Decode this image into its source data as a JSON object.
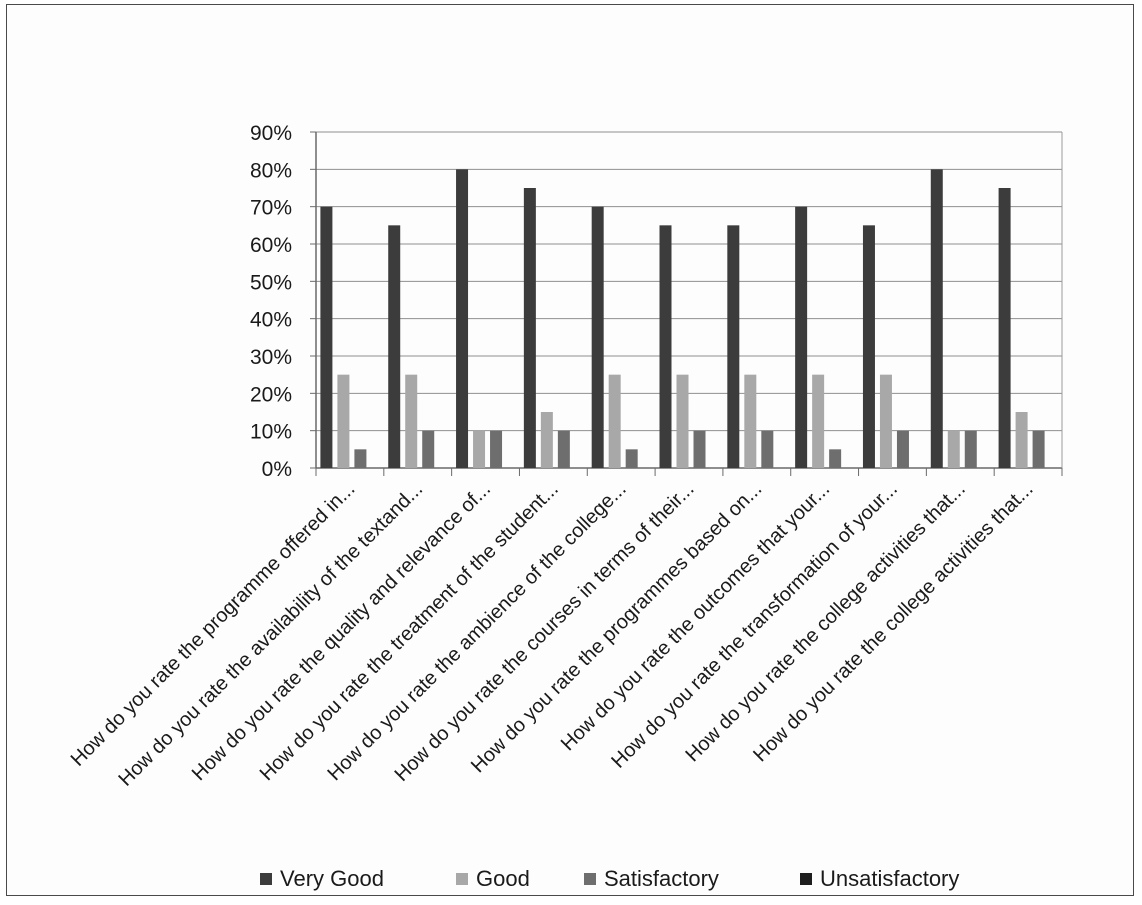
{
  "chart_data": {
    "type": "bar",
    "title": "",
    "xlabel": "",
    "ylabel": "",
    "ylim": [
      0,
      90
    ],
    "y_ticks": [
      "0%",
      "10%",
      "20%",
      "30%",
      "40%",
      "50%",
      "60%",
      "70%",
      "80%",
      "90%"
    ],
    "grid": true,
    "legend_position": "bottom",
    "categories": [
      "How do you rate the programme offered in...",
      "How do you rate the availability of the textand...",
      "How do you rate the quality and relevance of...",
      "How do you rate the treatment of the student...",
      "How do you rate the ambience of the college...",
      "How do you rate the courses in terms of their...",
      "How do you rate the programmes based on...",
      "How do you rate the outcomes that your...",
      "How do you rate the transformation of your...",
      "How do you rate the college activities that...",
      "How do you rate the college activities that..."
    ],
    "series": [
      {
        "name": "Very Good",
        "color": "#3c3c3c",
        "values": [
          70,
          65,
          80,
          75,
          70,
          65,
          65,
          70,
          65,
          80,
          75
        ]
      },
      {
        "name": "Good",
        "color": "#a8a8a8",
        "values": [
          25,
          25,
          10,
          15,
          25,
          25,
          25,
          25,
          25,
          10,
          15
        ]
      },
      {
        "name": "Satisfactory",
        "color": "#6e6e6e",
        "values": [
          5,
          10,
          10,
          10,
          5,
          10,
          10,
          5,
          10,
          10,
          10
        ]
      },
      {
        "name": "Unsatisfactory",
        "color": "#1e1e1e",
        "values": [
          0,
          0,
          0,
          0,
          0,
          0,
          0,
          0,
          0,
          0,
          0
        ]
      }
    ]
  }
}
